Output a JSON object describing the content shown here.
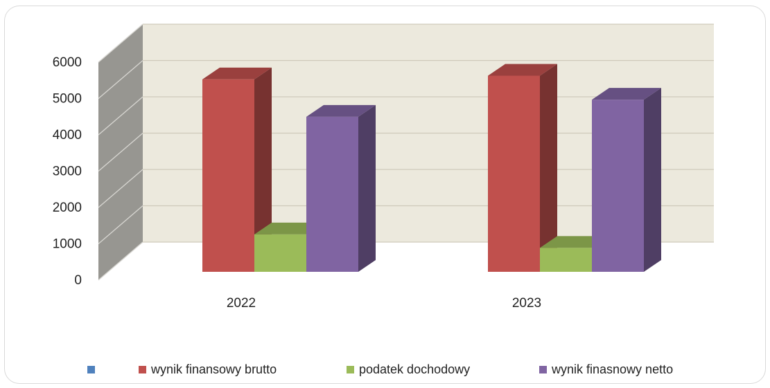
{
  "chart_data": {
    "type": "bar",
    "categories": [
      "2022",
      "2023"
    ],
    "series": [
      {
        "name": "",
        "values": [
          0,
          0
        ],
        "color": "#4f81bd"
      },
      {
        "name": "wynik finansowy brutto",
        "values": [
          5300,
          5400
        ],
        "color": "#c0504d"
      },
      {
        "name": "podatek dochodowy",
        "values": [
          1030,
          660
        ],
        "color": "#9bbb59"
      },
      {
        "name": "wynik finasnowy netto",
        "values": [
          4270,
          4740
        ],
        "color": "#8064a2"
      }
    ],
    "y_ticks": [
      "0",
      "1000",
      "2000",
      "3000",
      "4000",
      "5000",
      "6000"
    ],
    "ylim": [
      0,
      6000
    ],
    "grid": true,
    "three_d": true,
    "legend_position": "bottom"
  }
}
